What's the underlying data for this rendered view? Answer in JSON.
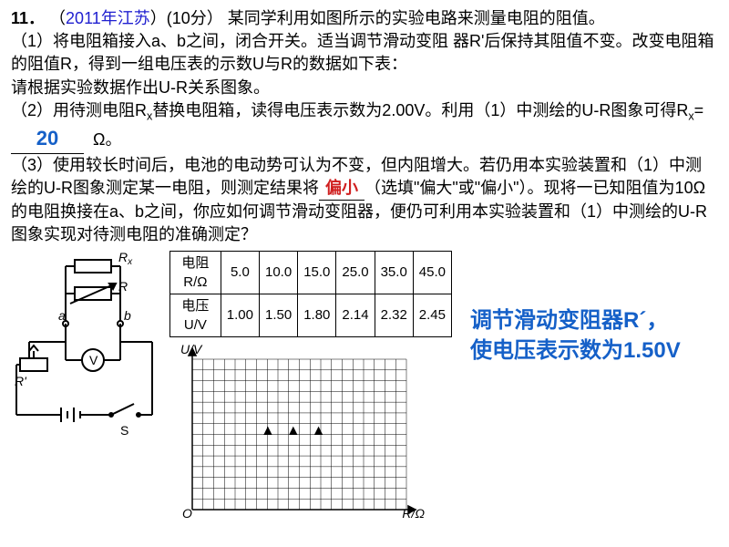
{
  "question": {
    "number": "11．",
    "year_prefix": "（",
    "year": "2011年江苏",
    "year_suffix": "）(10分）",
    "stem": "某同学利用如图所示的实验电路来测量电阻的阻值。",
    "part1_a": "（1）将电阻箱接入a、b之间，闭合开关。适当调节滑动变阻 器R'后保持其阻值不变。改变电阻箱的阻值R，得到一组电压表的示数U与R的数据如下表：",
    "part1_b": "请根据实验数据作出U-R关系图象。",
    "part2_a": "（2）用待测电阻R",
    "part2_sub": "x",
    "part2_b": "替换电阻箱，读得电压表示数为2.00V。利用（1）中测绘的U-R图象可得R",
    "part2_c": "=",
    "part2_answer": "20",
    "part2_unit": "Ω。",
    "part3_a": "（3）使用较长时间后，电池的电动势可认为不变，但内阻增大。若仍用本实验装置和（1）中测绘的U-R图象测定某一电阻，则测定结果将",
    "part3_answer": "偏小",
    "part3_b": "（选填\"偏大\"或\"偏小\"）。现将一已知阻值为10Ω的电阻换接在a、b之间，你应如何调节滑动变阻器，便仍可利用本实验装置和（1）中测绘的U-R图象实现对待测电阻的准确测定？"
  },
  "table": {
    "row1_header": "电阻 R/Ω",
    "row2_header": "电压 U/V",
    "r": [
      "5.0",
      "10.0",
      "15.0",
      "25.0",
      "35.0",
      "45.0"
    ],
    "u": [
      "1.00",
      "1.50",
      "1.80",
      "2.14",
      "2.32",
      "2.45"
    ]
  },
  "graph": {
    "y_label": "U/V",
    "x_label": "R/Ω",
    "origin": "O",
    "grid_color": "#000000",
    "bg": "#ffffff",
    "cols": 20,
    "rows": 14
  },
  "circuit": {
    "labels": {
      "rx": "R",
      "rx_sub": "x",
      "rvar": "R",
      "a": "a",
      "b": "b",
      "rprime": "R'",
      "v": "V",
      "s": "S"
    }
  },
  "answer_box": {
    "line1": "调节滑动变阻器R´，",
    "line2": "使电压表示数为1.50V"
  }
}
